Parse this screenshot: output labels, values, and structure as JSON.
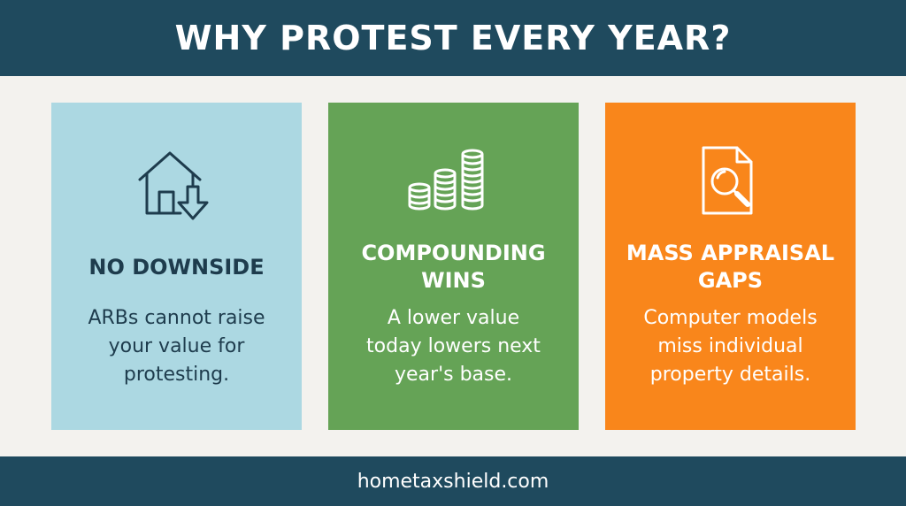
{
  "header": {
    "title": "WHY PROTEST EVERY YEAR?"
  },
  "cards": [
    {
      "icon": "house-down-arrow-icon",
      "title_lines": [
        "NO DOWNSIDE"
      ],
      "body_lines": [
        "ARBs cannot raise",
        "your value for",
        "protesting."
      ],
      "background": "#acd8e2",
      "text_color": "#1e3c4d"
    },
    {
      "icon": "coin-stacks-icon",
      "title_lines": [
        "COMPOUNDING",
        "WINS"
      ],
      "body_lines": [
        "A lower value",
        "today lowers next",
        "year's base."
      ],
      "background": "#65a356",
      "text_color": "#ffffff"
    },
    {
      "icon": "document-magnifier-icon",
      "title_lines": [
        "MASS APPRAISAL",
        "GAPS"
      ],
      "body_lines": [
        "Computer models",
        "miss individual",
        "property details."
      ],
      "background": "#f9861b",
      "text_color": "#ffffff"
    }
  ],
  "footer": {
    "website": "hometaxshield.com"
  },
  "colors": {
    "header_bg": "#1f4a5e",
    "page_bg": "#f3f2ee"
  }
}
